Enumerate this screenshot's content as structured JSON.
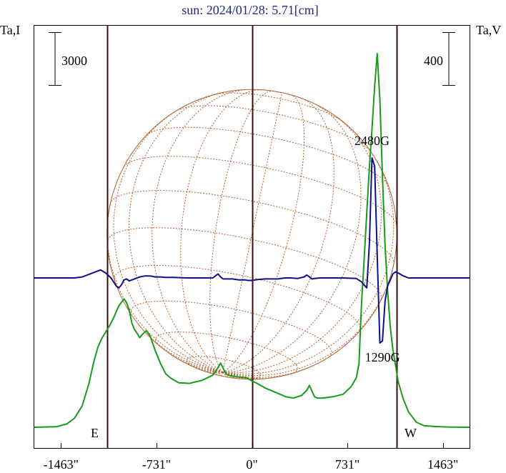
{
  "chart_data": {
    "type": "line",
    "title": "sun: 2024/01/28: 5.71[cm]",
    "left_axis_label": "Ta,I",
    "right_axis_label": "Ta,V",
    "left_scale_bar": "3000",
    "right_scale_bar": "400",
    "xlim": [
      -1670,
      1670
    ],
    "x_ticks": [
      {
        "value": -1463,
        "label": "-1463\""
      },
      {
        "value": -731,
        "label": "-731\""
      },
      {
        "value": 0,
        "label": "0\""
      },
      {
        "value": 731,
        "label": "731\""
      },
      {
        "value": 1463,
        "label": "1463\""
      }
    ],
    "east_label": "E",
    "west_label": "W",
    "limb_x": [
      -1110,
      1110
    ],
    "solar_radius_arcsec": 1110,
    "annotations": [
      {
        "text": "2480G",
        "x": 920
      },
      {
        "text": "1290G",
        "x": 1000
      }
    ],
    "colors": {
      "intensity": "#1a9a1a",
      "polarization": "#10108c",
      "disk": "#b06030",
      "vertical_lines": "#3a1010",
      "title": "#1a2a88"
    },
    "series": [
      {
        "key": "intensity",
        "x": [
          -1670,
          -1500,
          -1420,
          -1360,
          -1300,
          -1250,
          -1210,
          -1180,
          -1150,
          -1120,
          -1090,
          -1060,
          -1020,
          -980,
          -960,
          -940,
          -920,
          -900,
          -880,
          -860,
          -840,
          -810,
          -780,
          -740,
          -700,
          -660,
          -620,
          -560,
          -480,
          -380,
          -300,
          -260,
          -240,
          -220,
          -200,
          -180,
          -160,
          -100,
          -40,
          0,
          40,
          100,
          180,
          260,
          320,
          380,
          420,
          440,
          460,
          480,
          500,
          540,
          620,
          700,
          760,
          800,
          820,
          840,
          860,
          880,
          900,
          920,
          940,
          960,
          980,
          1000,
          1020,
          1040,
          1060,
          1080,
          1100,
          1120,
          1160,
          1200,
          1260,
          1320,
          1400,
          1500,
          1670
        ],
        "y": [
          0,
          40,
          260,
          700,
          1700,
          3400,
          5200,
          6300,
          7000,
          7500,
          8000,
          8600,
          9550,
          10100,
          9800,
          9200,
          8200,
          7700,
          7400,
          7050,
          7300,
          7600,
          7200,
          6000,
          5000,
          4200,
          3850,
          3500,
          3450,
          3700,
          4100,
          4700,
          5050,
          4650,
          4200,
          4100,
          4050,
          3950,
          3900,
          3650,
          3450,
          3100,
          2750,
          2400,
          2300,
          2500,
          2900,
          3300,
          2850,
          2400,
          2300,
          2300,
          2400,
          2600,
          3200,
          3900,
          5000,
          9800,
          13300,
          16900,
          20500,
          23500,
          26800,
          29400,
          25800,
          19800,
          14300,
          10700,
          7900,
          6100,
          4900,
          3600,
          2200,
          1200,
          400,
          120,
          60,
          20,
          0
        ]
      },
      {
        "key": "polarization",
        "x": [
          -1670,
          -1360,
          -1300,
          -1240,
          -1200,
          -1160,
          -1120,
          -1080,
          -1060,
          -1040,
          -1020,
          -1000,
          -980,
          -960,
          -940,
          -900,
          -860,
          -820,
          -780,
          -740,
          -700,
          -660,
          -600,
          -500,
          -400,
          -350,
          -300,
          -280,
          -260,
          -240,
          -220,
          -200,
          -150,
          -100,
          -50,
          -30,
          0,
          50,
          100,
          200,
          250,
          300,
          350,
          400,
          420,
          440,
          460,
          480,
          520,
          600,
          700,
          800,
          840,
          860,
          880,
          900,
          920,
          940,
          960,
          980,
          1000,
          1020,
          1040,
          1060,
          1080,
          1100,
          1120,
          1160,
          1200,
          1300,
          1670
        ],
        "y": [
          0,
          0,
          10,
          40,
          60,
          80,
          50,
          0,
          -40,
          -80,
          -100,
          -70,
          -20,
          -10,
          -30,
          -10,
          10,
          20,
          20,
          10,
          10,
          5,
          5,
          0,
          0,
          0,
          0,
          20,
          40,
          10,
          -10,
          -10,
          -10,
          -20,
          -20,
          -25,
          -25,
          -15,
          -10,
          -10,
          0,
          0,
          -5,
          10,
          30,
          10,
          -10,
          -5,
          0,
          0,
          0,
          -5,
          -40,
          -70,
          -100,
          350,
          1200,
          1120,
          230,
          -650,
          -630,
          -230,
          -80,
          -20,
          40,
          60,
          50,
          20,
          0,
          0,
          0
        ]
      }
    ]
  }
}
